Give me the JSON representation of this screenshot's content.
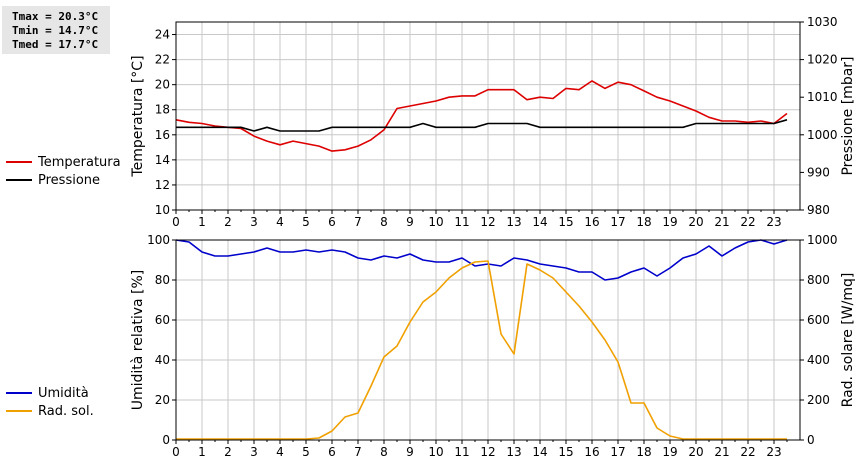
{
  "stats": {
    "tmax": "Tmax = 20.3°C",
    "tmin": "Tmin = 14.7°C",
    "tmed": "Tmed = 17.7°C"
  },
  "legend_top": [
    {
      "label": "Temperatura",
      "color": "#dd0000"
    },
    {
      "label": "Pressione",
      "color": "#000000"
    }
  ],
  "legend_bottom": [
    {
      "label": "Umidità",
      "color": "#0000cc"
    },
    {
      "label": "Rad. sol.",
      "color": "#f0a000"
    }
  ],
  "chart_data": [
    {
      "type": "line",
      "xlabel": "",
      "x_ticks": [
        "0",
        "1",
        "2",
        "3",
        "4",
        "5",
        "6",
        "7",
        "8",
        "9",
        "10",
        "11",
        "12",
        "13",
        "14",
        "15",
        "16",
        "17",
        "18",
        "19",
        "20",
        "21",
        "22",
        "23"
      ],
      "xlim": [
        0,
        24
      ],
      "ylabel_left": "Temperatura [°C]",
      "ylim_left": [
        10,
        25
      ],
      "yticks_left": [
        "10",
        "12",
        "14",
        "16",
        "18",
        "20",
        "22",
        "24"
      ],
      "ylabel_right": "Pressione [mbar]",
      "ylim_right": [
        980,
        1030
      ],
      "yticks_right": [
        "980",
        "990",
        "1000",
        "1010",
        "1020",
        "1030"
      ],
      "grid": true,
      "series": [
        {
          "name": "Temperatura",
          "axis": "left",
          "color": "#dd0000",
          "x": [
            0,
            0.5,
            1,
            1.5,
            2,
            2.5,
            3,
            3.5,
            4,
            4.5,
            5,
            5.5,
            6,
            6.5,
            7,
            7.5,
            8,
            8.5,
            9,
            9.5,
            10,
            10.5,
            11,
            11.5,
            12,
            12.5,
            13,
            13.5,
            14,
            14.5,
            15,
            15.5,
            16,
            16.5,
            17,
            17.5,
            18,
            18.5,
            19,
            19.5,
            20,
            20.5,
            21,
            21.5,
            22,
            22.5,
            23,
            23.5
          ],
          "values": [
            17.2,
            17.0,
            16.9,
            16.7,
            16.6,
            16.5,
            15.9,
            15.5,
            15.2,
            15.5,
            15.3,
            15.1,
            14.7,
            14.8,
            15.1,
            15.6,
            16.4,
            18.1,
            18.3,
            18.5,
            18.7,
            19.0,
            19.1,
            19.1,
            19.6,
            19.6,
            19.6,
            18.8,
            19.0,
            18.9,
            19.7,
            19.6,
            20.3,
            19.7,
            20.2,
            20.0,
            19.5,
            19.0,
            18.7,
            18.3,
            17.9,
            17.4,
            17.1,
            17.1,
            17.0,
            17.1,
            16.9,
            17.7
          ]
        },
        {
          "name": "Pressione",
          "axis": "right",
          "color": "#000000",
          "x": [
            0,
            1,
            2,
            2.5,
            3,
            3.5,
            4,
            4.5,
            5,
            5.5,
            6,
            6.5,
            7,
            7.5,
            8,
            8.5,
            9,
            9.5,
            10,
            10.5,
            11,
            11.5,
            12,
            12.5,
            13,
            13.5,
            14,
            14.5,
            15,
            15.5,
            16,
            16.5,
            17,
            17.5,
            18,
            18.5,
            19,
            19.5,
            20,
            20.5,
            21,
            21.5,
            22,
            22.5,
            23,
            23.5
          ],
          "values": [
            1002,
            1002,
            1002,
            1002,
            1001,
            1002,
            1001,
            1001,
            1001,
            1001,
            1002,
            1002,
            1002,
            1002,
            1002,
            1002,
            1002,
            1003,
            1002,
            1002,
            1002,
            1002,
            1003,
            1003,
            1003,
            1003,
            1002,
            1002,
            1002,
            1002,
            1002,
            1002,
            1002,
            1002,
            1002,
            1002,
            1002,
            1002,
            1003,
            1003,
            1003,
            1003,
            1003,
            1003,
            1003,
            1004
          ]
        }
      ]
    },
    {
      "type": "line",
      "xlabel": "",
      "x_ticks": [
        "0",
        "1",
        "2",
        "3",
        "4",
        "5",
        "6",
        "7",
        "8",
        "9",
        "10",
        "11",
        "12",
        "13",
        "14",
        "15",
        "16",
        "17",
        "18",
        "19",
        "20",
        "21",
        "22",
        "23"
      ],
      "xlim": [
        0,
        24
      ],
      "ylabel_left": "Umidità relativa [%]",
      "ylim_left": [
        0,
        100
      ],
      "yticks_left": [
        "0",
        "20",
        "40",
        "60",
        "80",
        "100"
      ],
      "ylabel_right": "Rad. solare [W/mq]",
      "ylim_right": [
        0,
        1000
      ],
      "yticks_right": [
        "0",
        "200",
        "400",
        "600",
        "800",
        "1000"
      ],
      "grid": true,
      "series": [
        {
          "name": "Umidità",
          "axis": "left",
          "color": "#0000cc",
          "x": [
            0,
            0.5,
            1,
            1.5,
            2,
            2.5,
            3,
            3.5,
            4,
            4.5,
            5,
            5.5,
            6,
            6.5,
            7,
            7.5,
            8,
            8.5,
            9,
            9.5,
            10,
            10.5,
            11,
            11.5,
            12,
            12.5,
            13,
            13.5,
            14,
            14.5,
            15,
            15.5,
            16,
            16.5,
            17,
            17.5,
            18,
            18.5,
            19,
            19.5,
            20,
            20.5,
            21,
            21.5,
            22,
            22.5,
            23,
            23.5
          ],
          "values": [
            100,
            99,
            94,
            92,
            92,
            93,
            94,
            96,
            94,
            94,
            95,
            94,
            95,
            94,
            91,
            90,
            92,
            91,
            93,
            90,
            89,
            89,
            91,
            87,
            88,
            87,
            91,
            90,
            88,
            87,
            86,
            84,
            84,
            80,
            81,
            84,
            86,
            82,
            86,
            91,
            93,
            97,
            92,
            96,
            99,
            100,
            98,
            100
          ]
        },
        {
          "name": "Rad. sol.",
          "axis": "right",
          "color": "#f0a000",
          "x": [
            0,
            0.5,
            1,
            1.5,
            2,
            2.5,
            3,
            3.5,
            4,
            4.5,
            5,
            5.5,
            6,
            6.5,
            7,
            7.5,
            8,
            8.5,
            9,
            9.5,
            10,
            10.5,
            11,
            11.5,
            12,
            12.5,
            13,
            13.5,
            14,
            14.5,
            15,
            15.5,
            16,
            16.5,
            17,
            17.5,
            18,
            18.5,
            19,
            19.5,
            20,
            20.5,
            21,
            21.5,
            22,
            22.5,
            23,
            23.5
          ],
          "values": [
            5,
            5,
            5,
            5,
            5,
            5,
            5,
            5,
            5,
            5,
            5,
            10,
            45,
            115,
            135,
            270,
            415,
            470,
            590,
            690,
            740,
            810,
            860,
            890,
            895,
            530,
            430,
            880,
            850,
            810,
            740,
            670,
            590,
            500,
            390,
            185,
            185,
            60,
            20,
            5,
            5,
            5,
            5,
            5,
            5,
            5,
            5,
            5
          ]
        }
      ]
    }
  ]
}
